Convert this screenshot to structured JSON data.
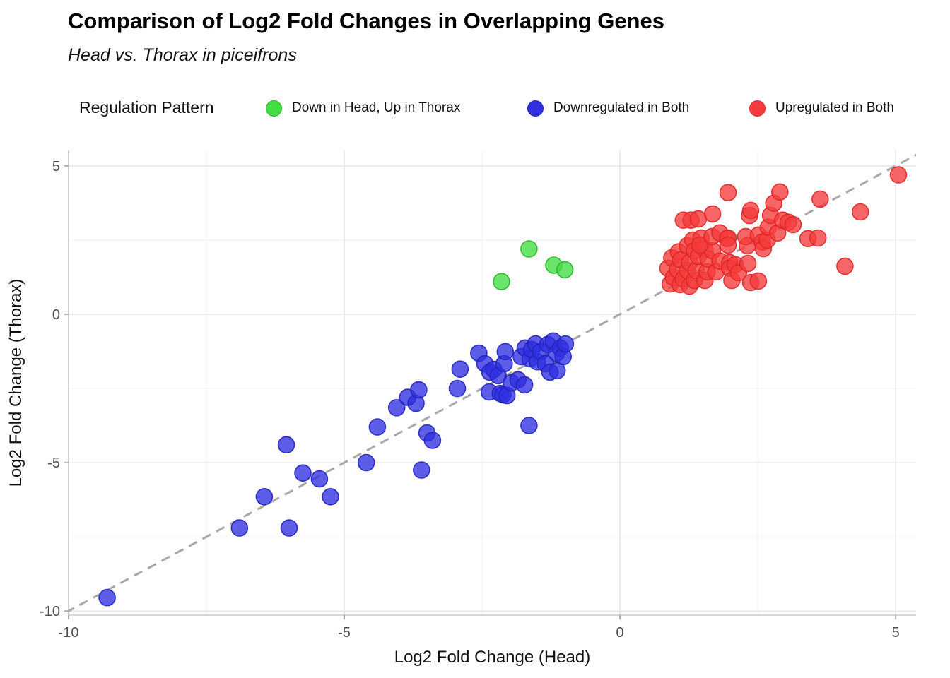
{
  "title": "Comparison of Log2 Fold Changes in Overlapping Genes",
  "subtitle": "Head vs. Thorax in piceifrons",
  "legend": {
    "title": "Regulation Pattern",
    "items": [
      {
        "label": "Down in Head, Up in Thorax",
        "color": "#41dd41",
        "edge": "#2bb52b"
      },
      {
        "label": "Downregulated in Both",
        "color": "#3030e0",
        "edge": "#2222bb"
      },
      {
        "label": "Upregulated in Both",
        "color": "#f53b3b",
        "edge": "#dd2626"
      }
    ]
  },
  "chart_data": {
    "type": "scatter",
    "title": "Comparison of Log2 Fold Changes in Overlapping Genes",
    "subtitle": "Head vs. Thorax in piceifrons",
    "xlabel": "Log2 Fold Change (Head)",
    "ylabel": "Log2 Fold Change (Thorax)",
    "xlim": [
      -10,
      5.37
    ],
    "ylim": [
      -10.14,
      5.52
    ],
    "xticks": [
      -10,
      -5,
      0,
      5
    ],
    "yticks": [
      -10,
      -5,
      0,
      5
    ],
    "x_minor_ticks": [
      -7.5,
      -2.5,
      2.5
    ],
    "y_minor_ticks": [
      -7.5,
      -2.5,
      2.5
    ],
    "grid": true,
    "legend_position": "top",
    "background": "#ffffff",
    "major_grid_color": "#e8e8e8",
    "minor_grid_color": "#f3f3f3",
    "axis_line_color": "#c9c9c9",
    "tick_label_color": "#4d4d4d",
    "identity_line": {
      "equation": "y = x",
      "style": "dashed",
      "color": "#a8a8a8"
    },
    "series": [
      {
        "name": "Down in Head, Up in Thorax",
        "color": "#41dd41",
        "edge": "#2bb52b",
        "points": [
          [
            -2.15,
            1.1
          ],
          [
            -1.65,
            2.2
          ],
          [
            -1.2,
            1.65
          ],
          [
            -1.0,
            1.5
          ]
        ]
      },
      {
        "name": "Downregulated in Both",
        "color": "#3030e0",
        "edge": "#2222bb",
        "points": [
          [
            -9.3,
            -9.55
          ],
          [
            -6.9,
            -7.2
          ],
          [
            -6.0,
            -7.2
          ],
          [
            -6.45,
            -6.15
          ],
          [
            -6.05,
            -4.4
          ],
          [
            -5.75,
            -5.35
          ],
          [
            -5.45,
            -5.55
          ],
          [
            -5.25,
            -6.15
          ],
          [
            -4.6,
            -5.0
          ],
          [
            -4.4,
            -3.8
          ],
          [
            -4.05,
            -3.15
          ],
          [
            -3.85,
            -2.8
          ],
          [
            -3.7,
            -3.0
          ],
          [
            -3.65,
            -2.55
          ],
          [
            -3.6,
            -5.25
          ],
          [
            -3.5,
            -4.0
          ],
          [
            -3.4,
            -4.25
          ],
          [
            -2.95,
            -2.5
          ],
          [
            -2.9,
            -1.85
          ],
          [
            -1.65,
            -3.75
          ],
          [
            -2.56,
            -1.31
          ],
          [
            -2.45,
            -1.67
          ],
          [
            -2.37,
            -2.62
          ],
          [
            -2.36,
            -1.95
          ],
          [
            -2.29,
            -1.86
          ],
          [
            -2.21,
            -2.07
          ],
          [
            -2.17,
            -2.67
          ],
          [
            -2.12,
            -2.71
          ],
          [
            -2.1,
            -1.67
          ],
          [
            -2.08,
            -1.26
          ],
          [
            -2.05,
            -2.74
          ],
          [
            -1.97,
            -2.31
          ],
          [
            -1.85,
            -2.21
          ],
          [
            -1.79,
            -1.43
          ],
          [
            -1.73,
            -2.38
          ],
          [
            -1.72,
            -1.14
          ],
          [
            -1.63,
            -1.5
          ],
          [
            -1.6,
            -1.19
          ],
          [
            -1.53,
            -1.0
          ],
          [
            -1.5,
            -1.6
          ],
          [
            -1.44,
            -1.26
          ],
          [
            -1.35,
            -1.67
          ],
          [
            -1.31,
            -1.02
          ],
          [
            -1.27,
            -1.95
          ],
          [
            -1.21,
            -0.9
          ],
          [
            -1.15,
            -1.31
          ],
          [
            -1.14,
            -1.9
          ],
          [
            -1.08,
            -1.14
          ],
          [
            -1.03,
            -1.43
          ],
          [
            -0.99,
            -1.0
          ]
        ]
      },
      {
        "name": "Upregulated in Both",
        "color": "#f53b3b",
        "edge": "#dd2626",
        "points": [
          [
            0.87,
            1.55
          ],
          [
            0.91,
            1.02
          ],
          [
            0.94,
            1.9
          ],
          [
            0.97,
            1.24
          ],
          [
            1.04,
            1.5
          ],
          [
            1.06,
            2.1
          ],
          [
            1.09,
            1.0
          ],
          [
            1.1,
            1.83
          ],
          [
            1.15,
            1.19
          ],
          [
            1.22,
            2.31
          ],
          [
            1.22,
            1.48
          ],
          [
            1.26,
            1.74
          ],
          [
            1.26,
            0.95
          ],
          [
            1.32,
            2.5
          ],
          [
            1.35,
            2.14
          ],
          [
            1.35,
            1.14
          ],
          [
            1.38,
            1.48
          ],
          [
            1.42,
            1.95
          ],
          [
            1.47,
            2.57
          ],
          [
            1.54,
            2.19
          ],
          [
            1.54,
            1.14
          ],
          [
            1.58,
            1.43
          ],
          [
            1.6,
            1.86
          ],
          [
            1.68,
            2.14
          ],
          [
            1.74,
            1.43
          ],
          [
            1.81,
            1.79
          ],
          [
            1.94,
            2.55
          ],
          [
            1.99,
            1.74
          ],
          [
            1.99,
            1.55
          ],
          [
            2.03,
            1.14
          ],
          [
            2.09,
            1.67
          ],
          [
            2.15,
            1.4
          ],
          [
            2.31,
            2.31
          ],
          [
            2.32,
            1.71
          ],
          [
            2.37,
            1.07
          ],
          [
            1.15,
            3.17
          ],
          [
            1.29,
            3.17
          ],
          [
            1.42,
            3.21
          ],
          [
            1.45,
            2.33
          ],
          [
            1.67,
            2.62
          ],
          [
            1.68,
            3.38
          ],
          [
            1.81,
            2.74
          ],
          [
            1.96,
            4.1
          ],
          [
            1.96,
            2.57
          ],
          [
            1.96,
            2.33
          ],
          [
            2.28,
            2.62
          ],
          [
            2.35,
            3.33
          ],
          [
            2.37,
            3.5
          ],
          [
            2.51,
            2.67
          ],
          [
            2.51,
            1.12
          ],
          [
            2.58,
            2.43
          ],
          [
            2.6,
            2.21
          ],
          [
            2.67,
            2.5
          ],
          [
            2.69,
            2.93
          ],
          [
            2.73,
            3.33
          ],
          [
            2.79,
            3.74
          ],
          [
            2.86,
            2.74
          ],
          [
            2.9,
            4.12
          ],
          [
            2.95,
            3.17
          ],
          [
            3.05,
            3.1
          ],
          [
            3.14,
            3.02
          ],
          [
            3.41,
            2.55
          ],
          [
            3.59,
            2.57
          ],
          [
            3.63,
            3.88
          ],
          [
            4.08,
            1.62
          ],
          [
            4.36,
            3.45
          ],
          [
            5.05,
            4.7
          ]
        ]
      }
    ]
  }
}
